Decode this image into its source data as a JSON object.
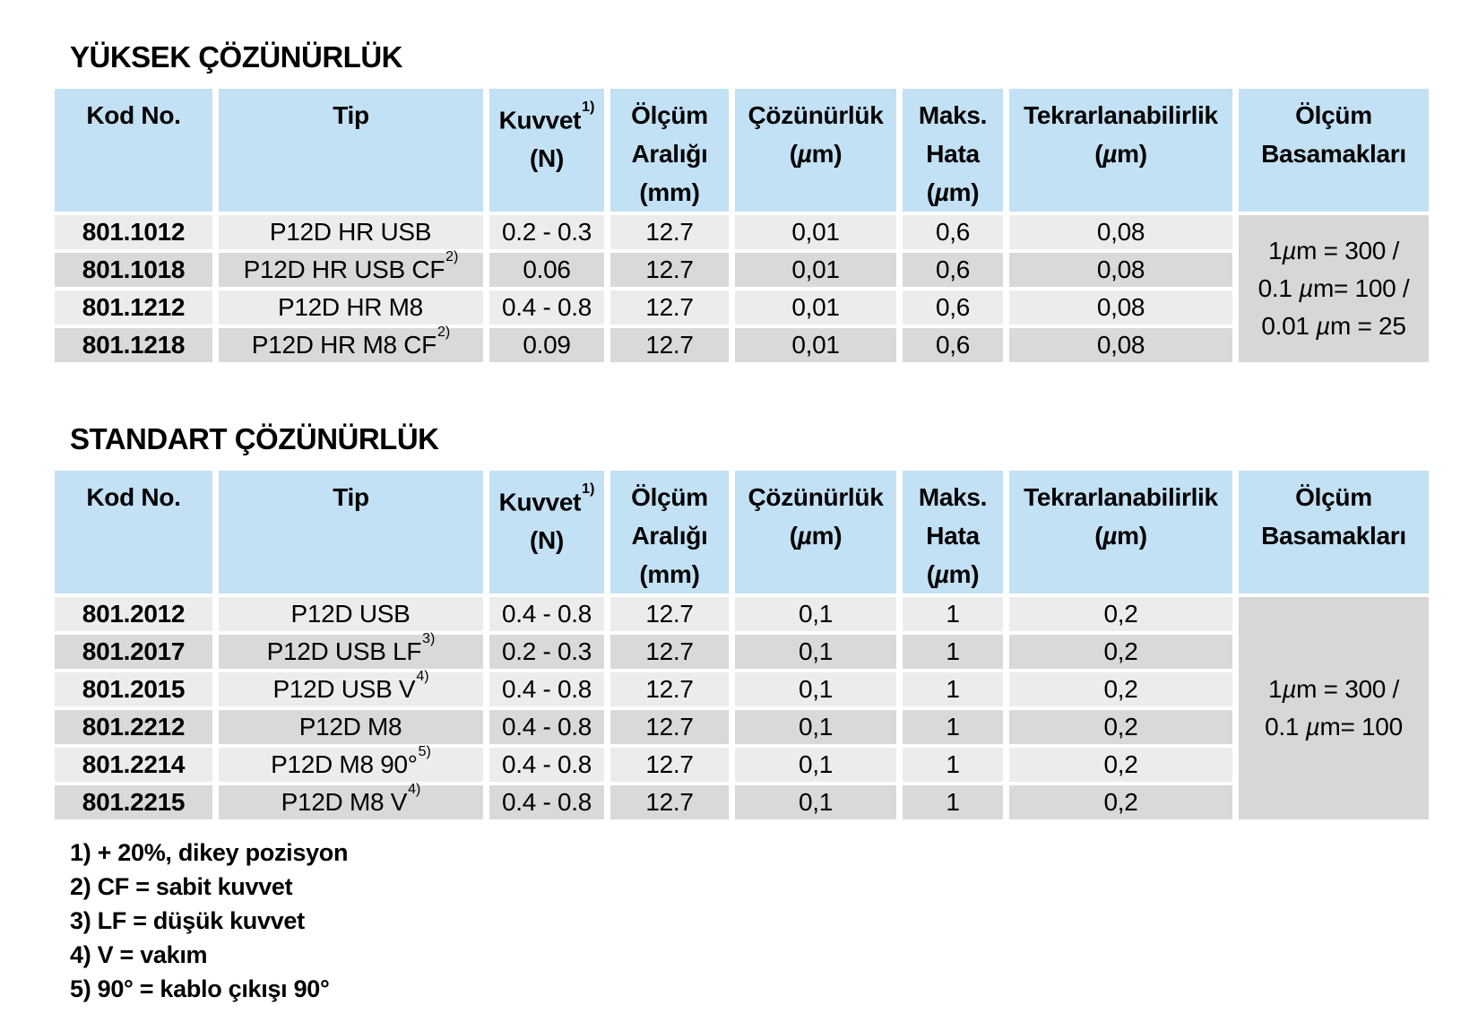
{
  "colors": {
    "header_bg": "#c2e1f4",
    "row_light": "#ececec",
    "row_dark": "#d9d9d9",
    "merged_bg": "#d7d7d7",
    "page_bg": "#ffffff",
    "text": "#000000"
  },
  "columns": {
    "kod": "Kod No.",
    "tip": "Tip",
    "kuvvet": "Kuvvet",
    "kuvvet_sup": "1)",
    "kuvvet_unit": "(N)",
    "olcum_araligi": "Ölçüm\nAralığı\n(mm)",
    "cozunurluk": "Çözünürlük\n(µm)",
    "maks_hata": "Maks.\nHata\n(µm)",
    "tekrarlanabilirlik": "Tekrarlanabilirlik\n(µm)",
    "olcum_basamaklari": "Ölçüm\nBasamakları"
  },
  "sections": [
    {
      "title": "YÜKSEK ÇÖZÜNÜRLÜK",
      "rows": [
        {
          "code": "801.1012",
          "tip": "P12D HR USB",
          "sup": "",
          "force": "0.2 - 0.3",
          "range": "12.7",
          "resolution": "0,01",
          "max_error": "0,6",
          "repeatability": "0,08"
        },
        {
          "code": "801.1018",
          "tip": "P12D HR USB CF",
          "sup": "2)",
          "force": "0.06",
          "range": "12.7",
          "resolution": "0,01",
          "max_error": "0,6",
          "repeatability": "0,08"
        },
        {
          "code": "801.1212",
          "tip": "P12D HR M8",
          "sup": "",
          "force": "0.4 - 0.8",
          "range": "12.7",
          "resolution": "0,01",
          "max_error": "0,6",
          "repeatability": "0,08"
        },
        {
          "code": "801.1218",
          "tip": "P12D HR M8 CF",
          "sup": "2)",
          "force": "0.09",
          "range": "12.7",
          "resolution": "0,01",
          "max_error": "0,6",
          "repeatability": "0,08"
        }
      ],
      "merged_lines": [
        "1µm = 300 /",
        "0.1 µm= 100 /",
        "0.01 µm = 25"
      ]
    },
    {
      "title": "STANDART ÇÖZÜNÜRLÜK",
      "rows": [
        {
          "code": "801.2012",
          "tip": "P12D USB",
          "sup": "",
          "force": "0.4 - 0.8",
          "range": "12.7",
          "resolution": "0,1",
          "max_error": "1",
          "repeatability": "0,2"
        },
        {
          "code": "801.2017",
          "tip": "P12D USB LF",
          "sup": "3)",
          "force": "0.2 - 0.3",
          "range": "12.7",
          "resolution": "0,1",
          "max_error": "1",
          "repeatability": "0,2"
        },
        {
          "code": "801.2015",
          "tip": "P12D USB V",
          "sup": "4)",
          "force": "0.4 - 0.8",
          "range": "12.7",
          "resolution": "0,1",
          "max_error": "1",
          "repeatability": "0,2"
        },
        {
          "code": "801.2212",
          "tip": "P12D M8",
          "sup": "",
          "force": "0.4 - 0.8",
          "range": "12.7",
          "resolution": "0,1",
          "max_error": "1",
          "repeatability": "0,2"
        },
        {
          "code": "801.2214",
          "tip": "P12D M8 90°",
          "sup": "5)",
          "force": "0.4 - 0.8",
          "range": "12.7",
          "resolution": "0,1",
          "max_error": "1",
          "repeatability": "0,2"
        },
        {
          "code": "801.2215",
          "tip": "P12D M8 V",
          "sup": "4)",
          "force": "0.4 - 0.8",
          "range": "12.7",
          "resolution": "0,1",
          "max_error": "1",
          "repeatability": "0,2"
        }
      ],
      "merged_lines": [
        "1µm = 300 /",
        "0.1 µm= 100"
      ]
    }
  ],
  "footnotes": [
    "1) + 20%, dikey pozisyon",
    "2) CF = sabit kuvvet",
    "3) LF = düşük kuvvet",
    "4) V = vakım",
    "5) 90° = kablo çıkışı 90°"
  ]
}
